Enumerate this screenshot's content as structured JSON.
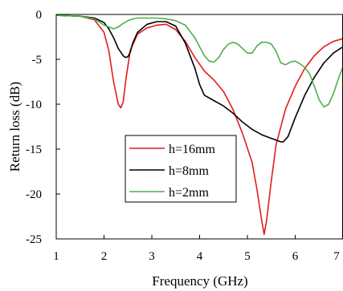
{
  "chart_data": {
    "type": "line",
    "title": "",
    "xlabel": "Frequency (GHz)",
    "ylabel": "Return loss (dB)",
    "xlim": [
      1,
      7
    ],
    "ylim": [
      -25,
      0
    ],
    "xticks": [
      "1",
      "2",
      "3",
      "4",
      "5",
      "6",
      "7"
    ],
    "yticks": [
      "0",
      "-5",
      "-10",
      "-15",
      "-20",
      "-25"
    ],
    "grid": false,
    "legend_position": "center",
    "series": [
      {
        "name": "h=16mm",
        "color": "#e41a1c",
        "x": [
          1.0,
          1.5,
          1.8,
          2.0,
          2.1,
          2.2,
          2.3,
          2.35,
          2.4,
          2.45,
          2.55,
          2.7,
          2.9,
          3.1,
          3.3,
          3.5,
          3.7,
          3.9,
          4.1,
          4.3,
          4.5,
          4.7,
          4.9,
          5.1,
          5.2,
          5.3,
          5.35,
          5.4,
          5.5,
          5.6,
          5.8,
          6.0,
          6.2,
          6.4,
          6.6,
          6.8,
          7.0
        ],
        "y": [
          -0.1,
          -0.2,
          -0.6,
          -2.0,
          -4.0,
          -7.5,
          -10.0,
          -10.4,
          -9.8,
          -7.5,
          -4.0,
          -2.2,
          -1.5,
          -1.2,
          -1.1,
          -1.7,
          -3.0,
          -4.8,
          -6.3,
          -7.3,
          -8.6,
          -10.6,
          -13.3,
          -16.5,
          -19.5,
          -23.0,
          -24.5,
          -23.0,
          -18.5,
          -14.5,
          -10.5,
          -8.0,
          -6.0,
          -4.6,
          -3.6,
          -3.0,
          -2.7
        ]
      },
      {
        "name": "h=8mm",
        "color": "#000000",
        "x": [
          1.0,
          1.5,
          1.8,
          2.0,
          2.1,
          2.2,
          2.3,
          2.4,
          2.45,
          2.5,
          2.55,
          2.6,
          2.7,
          2.9,
          3.1,
          3.3,
          3.5,
          3.7,
          3.9,
          4.0,
          4.1,
          4.3,
          4.5,
          4.7,
          4.9,
          5.1,
          5.3,
          5.5,
          5.6,
          5.7,
          5.75,
          5.85,
          6.0,
          6.2,
          6.4,
          6.6,
          6.8,
          7.0
        ],
        "y": [
          -0.1,
          -0.2,
          -0.4,
          -0.9,
          -1.6,
          -2.6,
          -3.8,
          -4.6,
          -4.8,
          -4.7,
          -4.2,
          -3.2,
          -2.0,
          -1.1,
          -0.8,
          -0.8,
          -1.3,
          -3.2,
          -6.0,
          -7.8,
          -9.0,
          -9.6,
          -10.2,
          -11.0,
          -12.0,
          -12.8,
          -13.4,
          -13.8,
          -14.0,
          -14.2,
          -14.2,
          -13.6,
          -11.5,
          -9.0,
          -7.0,
          -5.4,
          -4.3,
          -3.6
        ]
      },
      {
        "name": "h=2mm",
        "color": "#4daf4a",
        "x": [
          1.0,
          1.5,
          1.8,
          2.0,
          2.2,
          2.3,
          2.4,
          2.5,
          2.6,
          2.7,
          2.9,
          3.1,
          3.3,
          3.5,
          3.7,
          3.9,
          4.1,
          4.2,
          4.3,
          4.4,
          4.5,
          4.6,
          4.7,
          4.8,
          4.9,
          5.0,
          5.1,
          5.2,
          5.3,
          5.4,
          5.5,
          5.6,
          5.7,
          5.8,
          5.9,
          6.0,
          6.1,
          6.2,
          6.3,
          6.4,
          6.5,
          6.6,
          6.7,
          6.8,
          6.9,
          7.0
        ],
        "y": [
          -0.1,
          -0.2,
          -0.5,
          -1.2,
          -1.6,
          -1.4,
          -1.0,
          -0.7,
          -0.5,
          -0.4,
          -0.4,
          -0.4,
          -0.5,
          -0.7,
          -1.2,
          -2.6,
          -4.6,
          -5.2,
          -5.3,
          -4.8,
          -3.9,
          -3.3,
          -3.1,
          -3.3,
          -3.8,
          -4.3,
          -4.3,
          -3.5,
          -3.1,
          -3.1,
          -3.3,
          -4.1,
          -5.4,
          -5.6,
          -5.3,
          -5.2,
          -5.5,
          -5.9,
          -6.6,
          -8.0,
          -9.5,
          -10.3,
          -10.0,
          -8.8,
          -7.2,
          -5.8
        ]
      }
    ]
  }
}
